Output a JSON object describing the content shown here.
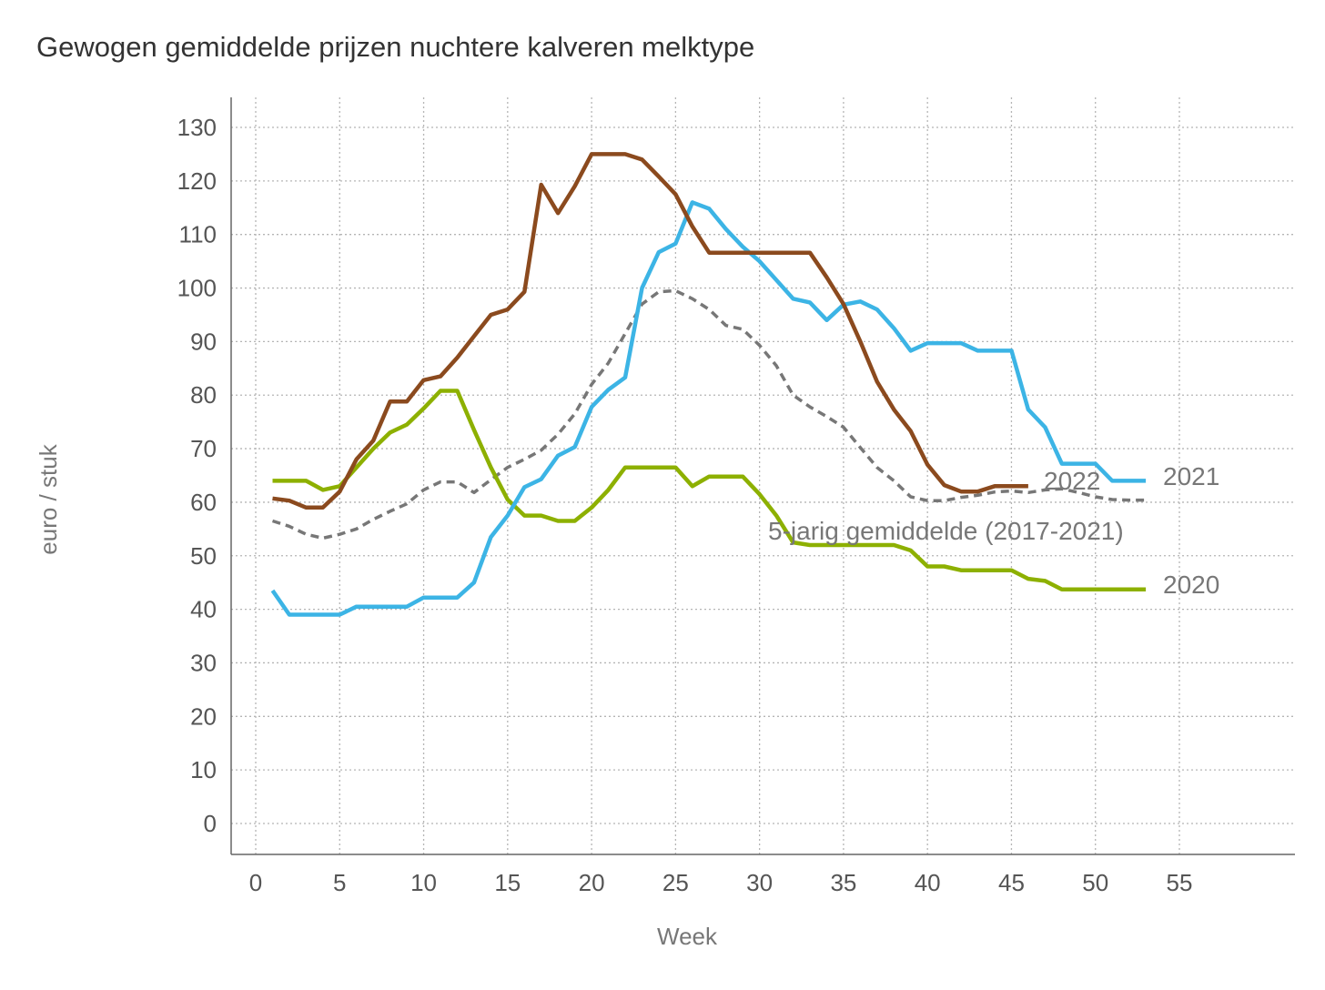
{
  "chart_data": {
    "type": "line",
    "title": "Gewogen gemiddelde prijzen nuchtere kalveren melktype",
    "xlabel": "Week",
    "ylabel": "euro / stuk",
    "xlim": [
      0,
      61
    ],
    "ylim": [
      -5,
      135
    ],
    "x_ticks": [
      0,
      5,
      10,
      15,
      20,
      25,
      30,
      35,
      40,
      45,
      50,
      55
    ],
    "y_ticks": [
      0,
      10,
      20,
      30,
      40,
      50,
      60,
      70,
      80,
      90,
      100,
      110,
      120,
      130
    ],
    "grid": true,
    "series": [
      {
        "name": "5-jarig gemiddelde (2017-2021)",
        "color": "#777777",
        "dashed": true,
        "x": [
          1,
          2,
          3,
          4,
          5,
          6,
          7,
          8,
          9,
          10,
          11,
          12,
          13,
          14,
          15,
          16,
          17,
          18,
          19,
          20,
          21,
          22,
          23,
          24,
          25,
          26,
          27,
          28,
          29,
          30,
          31,
          32,
          33,
          34,
          35,
          36,
          37,
          38,
          39,
          40,
          41,
          42,
          43,
          44,
          45,
          46,
          47,
          48,
          49,
          50,
          51,
          52,
          53
        ],
        "values": [
          56.5,
          55.5,
          54,
          53.3,
          54,
          55,
          56.8,
          58.3,
          59.7,
          62.3,
          63.8,
          63.8,
          61.8,
          64.2,
          66.5,
          68,
          69.7,
          72.7,
          76.5,
          82,
          86,
          91.5,
          97,
          99.3,
          99.5,
          98,
          96,
          93,
          92.3,
          89.3,
          85.5,
          80,
          77.8,
          76,
          74,
          70.2,
          66.5,
          64,
          61,
          60.3,
          60.3,
          60.9,
          61.3,
          61.9,
          62.1,
          61.8,
          62.3,
          62.5,
          61.8,
          61,
          60.5,
          60.4,
          60.4
        ]
      },
      {
        "name": "2020",
        "color": "#8db000",
        "dashed": false,
        "x": [
          1,
          2,
          3,
          4,
          5,
          6,
          7,
          8,
          9,
          10,
          11,
          12,
          13,
          14,
          15,
          16,
          17,
          18,
          19,
          20,
          21,
          22,
          23,
          24,
          25,
          26,
          27,
          28,
          29,
          30,
          31,
          32,
          33,
          34,
          35,
          36,
          37,
          38,
          39,
          40,
          41,
          42,
          43,
          44,
          45,
          46,
          47,
          48,
          49,
          50,
          51,
          52,
          53
        ],
        "values": [
          64,
          64,
          64,
          62.3,
          63,
          66.5,
          70,
          73,
          74.5,
          77.5,
          80.8,
          80.8,
          73.5,
          66.5,
          60.5,
          57.5,
          57.5,
          56.5,
          56.5,
          59,
          62.3,
          66.5,
          66.5,
          66.5,
          66.5,
          63,
          64.8,
          64.8,
          64.8,
          61.5,
          57.5,
          52.5,
          52,
          52,
          52,
          52,
          52,
          52,
          51,
          48,
          48,
          47.3,
          47.3,
          47.3,
          47.3,
          45.7,
          45.3,
          43.7,
          43.7,
          43.7,
          43.7,
          43.7,
          43.7
        ]
      },
      {
        "name": "2021",
        "color": "#3cb4e5",
        "dashed": false,
        "x": [
          1,
          2,
          3,
          4,
          5,
          6,
          7,
          8,
          9,
          10,
          11,
          12,
          13,
          14,
          15,
          16,
          17,
          18,
          19,
          20,
          21,
          22,
          23,
          24,
          25,
          26,
          27,
          28,
          29,
          30,
          31,
          32,
          33,
          34,
          35,
          36,
          37,
          38,
          39,
          40,
          41,
          42,
          43,
          44,
          45,
          46,
          47,
          48,
          49,
          50,
          51,
          52,
          53
        ],
        "values": [
          43.5,
          39,
          39,
          39,
          39,
          40.5,
          40.5,
          40.5,
          40.5,
          42.2,
          42.2,
          42.2,
          45,
          53.5,
          57.5,
          62.8,
          64.3,
          68.7,
          70.3,
          77.8,
          81,
          83.3,
          100,
          106.7,
          108.3,
          116,
          114.8,
          111,
          107.7,
          105,
          101.5,
          98,
          97.3,
          94,
          96.9,
          97.5,
          96,
          92.5,
          88.3,
          89.7,
          89.7,
          89.7,
          88.3,
          88.3,
          88.3,
          77.3,
          74,
          67.2,
          67.2,
          67.2,
          64,
          64,
          64
        ]
      },
      {
        "name": "2022",
        "color": "#8b4a1e",
        "dashed": false,
        "x": [
          1,
          2,
          3,
          4,
          5,
          6,
          7,
          8,
          9,
          10,
          11,
          12,
          13,
          14,
          15,
          16,
          17,
          18,
          19,
          20,
          21,
          22,
          23,
          24,
          25,
          26,
          27,
          28,
          29,
          30,
          31,
          32,
          33,
          34,
          35,
          36,
          37,
          38,
          39,
          40,
          41,
          42,
          43,
          44,
          45,
          46
        ],
        "values": [
          60.7,
          60.3,
          59,
          59,
          62,
          68,
          71.5,
          78.8,
          78.8,
          82.8,
          83.5,
          87,
          91,
          95,
          96,
          99.3,
          119.3,
          114,
          119,
          125,
          125,
          125,
          124,
          120.8,
          117.5,
          111.5,
          106.6,
          106.6,
          106.6,
          106.6,
          106.6,
          106.6,
          106.6,
          102,
          97,
          90,
          82.5,
          77.3,
          73.3,
          67,
          63.2,
          62,
          62,
          63,
          63,
          63
        ]
      }
    ],
    "series_labels": [
      "2022",
      "2021",
      "5-jarig gemiddelde (2017-2021)",
      "2020"
    ]
  }
}
